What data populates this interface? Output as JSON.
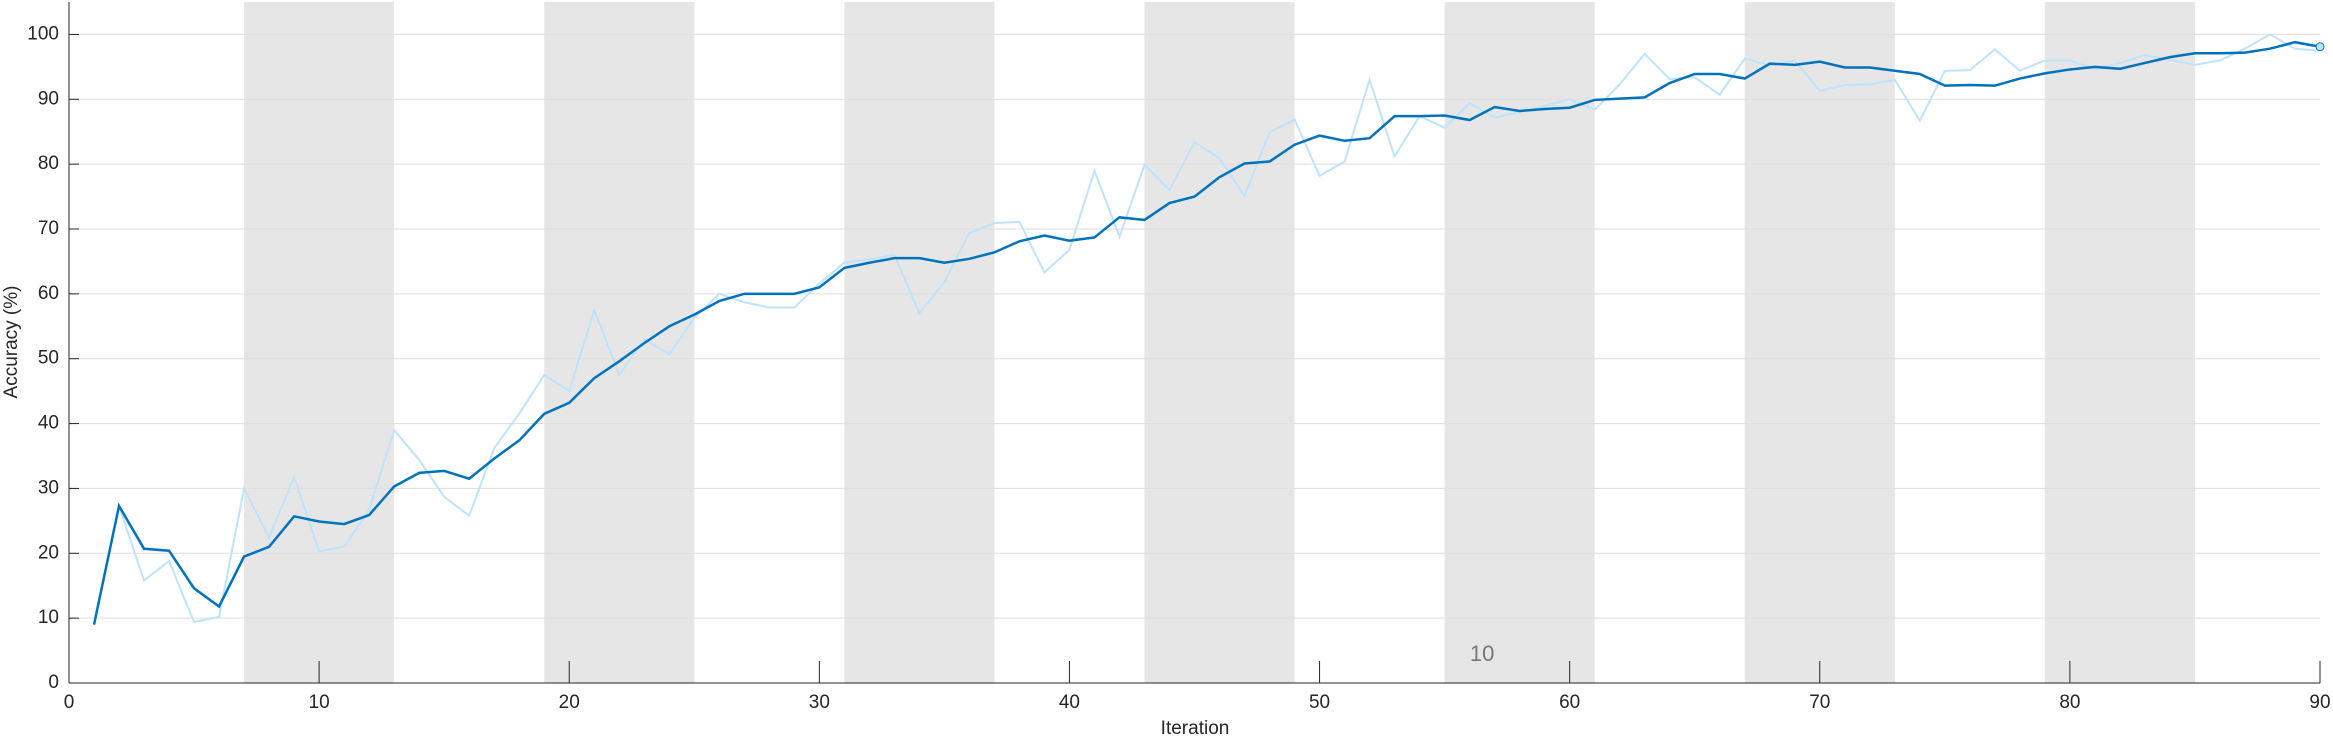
{
  "chart_data": {
    "type": "line",
    "xlabel": "Iteration",
    "ylabel": "Accuracy (%)",
    "annotation": "10",
    "x": [
      1,
      2,
      3,
      4,
      5,
      6,
      7,
      8,
      9,
      10,
      11,
      12,
      13,
      14,
      15,
      16,
      17,
      18,
      19,
      20,
      21,
      22,
      23,
      24,
      25,
      26,
      27,
      28,
      29,
      30,
      31,
      32,
      33,
      34,
      35,
      36,
      37,
      38,
      39,
      40,
      41,
      42,
      43,
      44,
      45,
      46,
      47,
      48,
      49,
      50,
      51,
      52,
      53,
      54,
      55,
      56,
      57,
      58,
      59,
      60,
      61,
      62,
      63,
      64,
      65,
      66,
      67,
      68,
      69,
      70,
      71,
      72,
      73,
      74,
      75,
      76,
      77,
      78,
      79,
      80,
      81,
      82,
      83,
      84,
      85,
      86,
      87,
      88,
      89,
      90
    ],
    "epoch_bands": [
      [
        7,
        13
      ],
      [
        19,
        25
      ],
      [
        31,
        37
      ],
      [
        43,
        49
      ],
      [
        55,
        61
      ],
      [
        67,
        73
      ],
      [
        79,
        85
      ]
    ],
    "series": [
      {
        "color": "#bfe3fb",
        "values": [
          9,
          27.3,
          15.8,
          18.8,
          9.4,
          10.2,
          30,
          22.4,
          31.8,
          20.3,
          21,
          26.7,
          39,
          34.4,
          28.7,
          25.8,
          36.2,
          41.5,
          47.5,
          45,
          57.5,
          47.5,
          53,
          50.7,
          56.3,
          60,
          58.7,
          57.9,
          57.9,
          61.6,
          64.8,
          65.3,
          66,
          57,
          61.8,
          69.4,
          70.9,
          71.1,
          63.3,
          66.8,
          79,
          68.8,
          79.9,
          76,
          83.4,
          80.9,
          75.1,
          84.9,
          86.9,
          78.2,
          80.4,
          93,
          81.2,
          87.4,
          85.6,
          89.4,
          87.2,
          88,
          89,
          90,
          88.4,
          92.3,
          97,
          93.1,
          93.4,
          90.7,
          96.3,
          95.2,
          96,
          91.3,
          92.2,
          92.3,
          93,
          86.7,
          94.4,
          94.5,
          97.7,
          94.4,
          96,
          96,
          94.6,
          95.6,
          96.8,
          96.1,
          95.3,
          96,
          97.8,
          100,
          97.8,
          97.5
        ]
      },
      {
        "color": "#0072bd",
        "values": [
          9,
          27.3,
          20.7,
          20.4,
          14.6,
          11.8,
          19.5,
          21,
          25.7,
          24.9,
          24.5,
          25.9,
          30.3,
          32.4,
          32.7,
          31.5,
          34.6,
          37.4,
          41.5,
          43.2,
          47,
          49.6,
          52.4,
          55,
          56.8,
          58.9,
          60,
          60,
          60,
          61,
          64,
          64.8,
          65.5,
          65.5,
          64.8,
          65.4,
          66.4,
          68.1,
          69,
          68.2,
          68.7,
          71.8,
          71.4,
          74,
          75,
          78,
          80.1,
          80.4,
          83,
          84.4,
          83.6,
          84,
          87.4,
          87.4,
          87.5,
          86.8,
          88.8,
          88.2,
          88.5,
          88.7,
          89.9,
          90.1,
          90.3,
          92.5,
          93.9,
          93.9,
          93.2,
          95.5,
          95.3,
          95.8,
          94.9,
          94.9,
          94.4,
          93.9,
          92.1,
          92.2,
          92.1,
          93.2,
          94,
          94.6,
          95,
          94.7,
          95.6,
          96.5,
          97.1,
          97.1,
          97.2,
          97.8,
          98.8,
          98.1
        ]
      }
    ],
    "xlim": [
      0,
      90
    ],
    "xticks": [
      0,
      10,
      20,
      30,
      40,
      50,
      60,
      70,
      80,
      90
    ],
    "ylim": [
      0,
      105
    ],
    "yticks": [
      0,
      10,
      20,
      30,
      40,
      50,
      60,
      70,
      80,
      90,
      100
    ],
    "grid": true
  }
}
